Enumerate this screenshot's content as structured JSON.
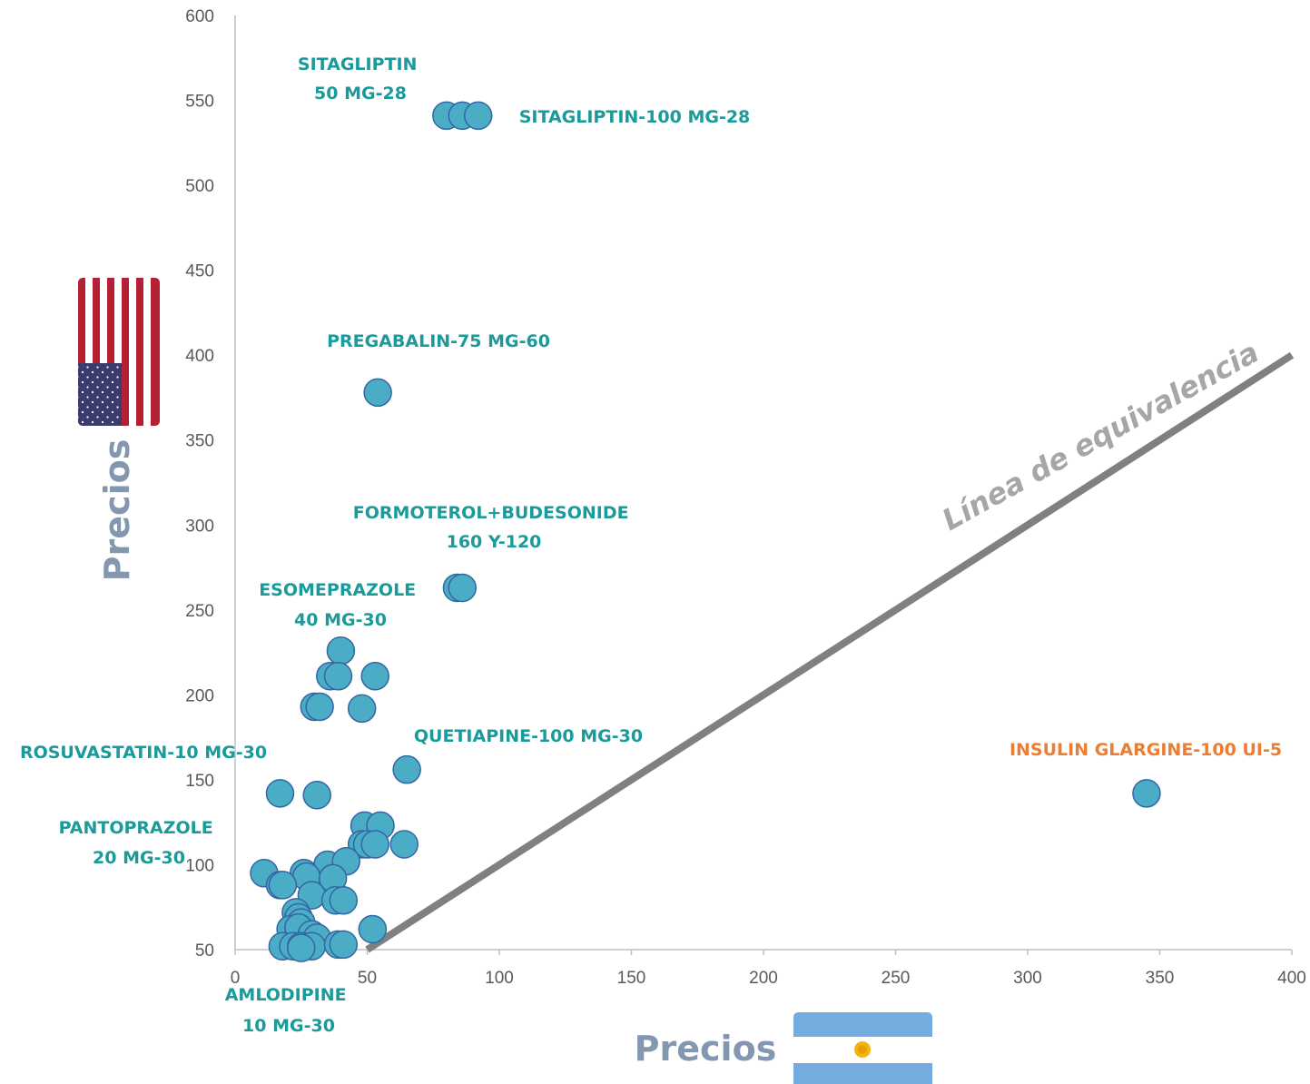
{
  "chart_data": {
    "type": "scatter",
    "xlim": [
      0,
      400
    ],
    "ylim": [
      50,
      600
    ],
    "x_ticks": [
      0,
      50,
      100,
      150,
      200,
      250,
      300,
      350,
      400
    ],
    "y_ticks": [
      50,
      100,
      150,
      200,
      250,
      300,
      350,
      400,
      450,
      500,
      550,
      600
    ],
    "xlabel": "Precios",
    "ylabel": "Precios",
    "grid": false,
    "legend": "none",
    "colors": {
      "points": "#4bacc6",
      "point_stroke": "#3465a4",
      "labels": "#1a9a9a",
      "highlight": "#ed7d31",
      "line": "#808080",
      "axis_title": "#8497b0"
    },
    "equivalence_line": {
      "label": "Línea de equivalencia",
      "x": [
        50,
        400
      ],
      "y": [
        50,
        400
      ]
    },
    "points": [
      {
        "x": 80,
        "y": 541
      },
      {
        "x": 86,
        "y": 541
      },
      {
        "x": 92,
        "y": 541
      },
      {
        "x": 54,
        "y": 378
      },
      {
        "x": 84,
        "y": 263
      },
      {
        "x": 86,
        "y": 263
      },
      {
        "x": 40,
        "y": 226
      },
      {
        "x": 36,
        "y": 211
      },
      {
        "x": 39,
        "y": 211
      },
      {
        "x": 53,
        "y": 211
      },
      {
        "x": 30,
        "y": 193
      },
      {
        "x": 32,
        "y": 193
      },
      {
        "x": 48,
        "y": 192
      },
      {
        "x": 65,
        "y": 156
      },
      {
        "x": 17,
        "y": 142
      },
      {
        "x": 31,
        "y": 141
      },
      {
        "x": 345,
        "y": 142
      },
      {
        "x": 49,
        "y": 123
      },
      {
        "x": 55,
        "y": 123
      },
      {
        "x": 48,
        "y": 112
      },
      {
        "x": 50,
        "y": 112
      },
      {
        "x": 53,
        "y": 112
      },
      {
        "x": 64,
        "y": 112
      },
      {
        "x": 35,
        "y": 100
      },
      {
        "x": 42,
        "y": 102
      },
      {
        "x": 11,
        "y": 95
      },
      {
        "x": 26,
        "y": 95
      },
      {
        "x": 27,
        "y": 93
      },
      {
        "x": 37,
        "y": 92
      },
      {
        "x": 17,
        "y": 88
      },
      {
        "x": 18,
        "y": 88
      },
      {
        "x": 29,
        "y": 82
      },
      {
        "x": 38,
        "y": 79
      },
      {
        "x": 41,
        "y": 79
      },
      {
        "x": 23,
        "y": 72
      },
      {
        "x": 24,
        "y": 69
      },
      {
        "x": 25,
        "y": 66
      },
      {
        "x": 21,
        "y": 62
      },
      {
        "x": 24,
        "y": 63
      },
      {
        "x": 52,
        "y": 62
      },
      {
        "x": 29,
        "y": 59
      },
      {
        "x": 31,
        "y": 57
      },
      {
        "x": 18,
        "y": 52
      },
      {
        "x": 22,
        "y": 52
      },
      {
        "x": 25,
        "y": 52
      },
      {
        "x": 29,
        "y": 52
      },
      {
        "x": 39,
        "y": 53
      },
      {
        "x": 41,
        "y": 53
      },
      {
        "x": 25,
        "y": 51
      }
    ],
    "annotations": [
      {
        "lines": [
          "SITAGLIPTIN",
          "50 MG-28"
        ]
      },
      {
        "lines": [
          "SITAGLIPTIN-100 MG-28"
        ]
      },
      {
        "lines": [
          "PREGABALIN-75 MG-60"
        ]
      },
      {
        "lines": [
          "FORMOTEROL+BUDESONIDE",
          "160 Y-120"
        ]
      },
      {
        "lines": [
          "ESOMEPRAZOLE",
          "40 MG-30"
        ]
      },
      {
        "lines": [
          "QUETIAPINE-100 MG-30"
        ]
      },
      {
        "lines": [
          "ROSUVASTATIN-10 MG-30"
        ]
      },
      {
        "lines": [
          "PANTOPRAZOLE",
          "20 MG-30"
        ]
      },
      {
        "lines": [
          "AMLODIPINE",
          "10 MG-30"
        ]
      },
      {
        "lines": [
          "INSULIN GLARGINE-100 UI-5"
        ],
        "highlight": true
      }
    ],
    "flags": {
      "y_axis": "usa-flag-icon",
      "x_axis": "argentina-flag-icon"
    }
  }
}
